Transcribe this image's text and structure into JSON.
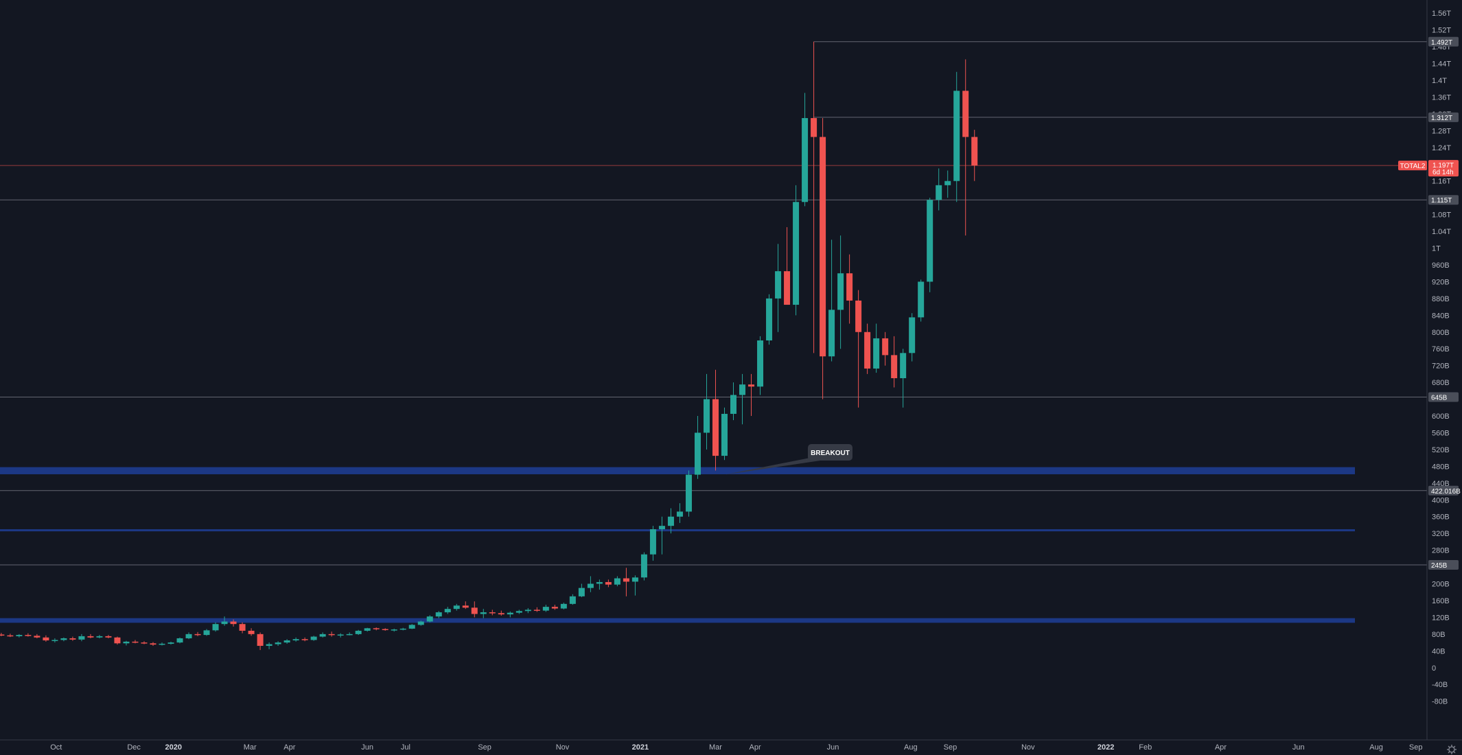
{
  "chart_data": {
    "type": "candlestick",
    "symbol": "TOTAL2",
    "interval": "weekly",
    "y_axis": {
      "ticks": [
        "1.56T",
        "1.52T",
        "1.48T",
        "1.44T",
        "1.4T",
        "1.36T",
        "1.32T",
        "1.28T",
        "1.24T",
        "1.2T",
        "1.16T",
        "1.12T",
        "1.08T",
        "1.04T",
        "1T",
        "960B",
        "920B",
        "880B",
        "840B",
        "800B",
        "760B",
        "720B",
        "680B",
        "640B",
        "600B",
        "560B",
        "520B",
        "480B",
        "440B",
        "400B",
        "360B",
        "320B",
        "280B",
        "240B",
        "200B",
        "160B",
        "120B",
        "80B",
        "40B",
        "0",
        "-40B",
        "-80B"
      ],
      "range": [
        -110000000000,
        1580000000000
      ]
    },
    "x_axis": {
      "labels": [
        {
          "text": "Oct",
          "date": "2019-10-01",
          "bold": false
        },
        {
          "text": "Dec",
          "date": "2019-12-01",
          "bold": false
        },
        {
          "text": "2020",
          "date": "2020-01-01",
          "bold": true
        },
        {
          "text": "Mar",
          "date": "2020-03-01",
          "bold": false
        },
        {
          "text": "Apr",
          "date": "2020-04-01",
          "bold": false
        },
        {
          "text": "Jun",
          "date": "2020-06-01",
          "bold": false
        },
        {
          "text": "Jul",
          "date": "2020-07-01",
          "bold": false
        },
        {
          "text": "Sep",
          "date": "2020-09-01",
          "bold": false
        },
        {
          "text": "Nov",
          "date": "2020-11-01",
          "bold": false
        },
        {
          "text": "2021",
          "date": "2021-01-01",
          "bold": true
        },
        {
          "text": "Mar",
          "date": "2021-03-01",
          "bold": false
        },
        {
          "text": "Apr",
          "date": "2021-04-01",
          "bold": false
        },
        {
          "text": "Jun",
          "date": "2021-06-01",
          "bold": false
        },
        {
          "text": "Aug",
          "date": "2021-08-01",
          "bold": false
        },
        {
          "text": "Sep",
          "date": "2021-09-01",
          "bold": false
        },
        {
          "text": "Nov",
          "date": "2021-11-01",
          "bold": false
        },
        {
          "text": "2022",
          "date": "2022-01-01",
          "bold": true
        },
        {
          "text": "Feb",
          "date": "2022-02-01",
          "bold": false
        },
        {
          "text": "Apr",
          "date": "2022-04-01",
          "bold": false
        },
        {
          "text": "Jun",
          "date": "2022-06-01",
          "bold": false
        },
        {
          "text": "Aug",
          "date": "2022-08-01",
          "bold": false
        },
        {
          "text": "Sep",
          "date": "2022-09-01",
          "bold": false
        }
      ],
      "range": [
        "2019-08-18",
        "2022-09-20"
      ]
    },
    "candles": [
      {
        "date": "2019-08-19",
        "open": 79,
        "high": 83,
        "low": 75,
        "close": 77
      },
      {
        "date": "2019-08-26",
        "open": 77,
        "high": 81,
        "low": 73,
        "close": 75
      },
      {
        "date": "2019-09-02",
        "open": 75,
        "high": 80,
        "low": 72,
        "close": 78
      },
      {
        "date": "2019-09-09",
        "open": 78,
        "high": 82,
        "low": 74,
        "close": 76
      },
      {
        "date": "2019-09-16",
        "open": 76,
        "high": 80,
        "low": 70,
        "close": 72
      },
      {
        "date": "2019-09-23",
        "open": 72,
        "high": 77,
        "low": 62,
        "close": 65
      },
      {
        "date": "2019-09-30",
        "open": 65,
        "high": 70,
        "low": 60,
        "close": 66
      },
      {
        "date": "2019-10-07",
        "open": 66,
        "high": 72,
        "low": 63,
        "close": 70
      },
      {
        "date": "2019-10-14",
        "open": 70,
        "high": 74,
        "low": 64,
        "close": 67
      },
      {
        "date": "2019-10-21",
        "open": 67,
        "high": 80,
        "low": 63,
        "close": 75
      },
      {
        "date": "2019-10-28",
        "open": 75,
        "high": 80,
        "low": 70,
        "close": 72
      },
      {
        "date": "2019-11-04",
        "open": 72,
        "high": 78,
        "low": 70,
        "close": 75
      },
      {
        "date": "2019-11-11",
        "open": 75,
        "high": 78,
        "low": 70,
        "close": 72
      },
      {
        "date": "2019-11-18",
        "open": 72,
        "high": 74,
        "low": 55,
        "close": 58
      },
      {
        "date": "2019-11-25",
        "open": 58,
        "high": 64,
        "low": 53,
        "close": 62
      },
      {
        "date": "2019-12-02",
        "open": 62,
        "high": 66,
        "low": 58,
        "close": 60
      },
      {
        "date": "2019-12-09",
        "open": 60,
        "high": 63,
        "low": 56,
        "close": 58
      },
      {
        "date": "2019-12-16",
        "open": 58,
        "high": 61,
        "low": 52,
        "close": 55
      },
      {
        "date": "2019-12-23",
        "open": 55,
        "high": 60,
        "low": 53,
        "close": 57
      },
      {
        "date": "2019-12-30",
        "open": 57,
        "high": 62,
        "low": 55,
        "close": 60
      },
      {
        "date": "2020-01-06",
        "open": 60,
        "high": 72,
        "low": 58,
        "close": 70
      },
      {
        "date": "2020-01-13",
        "open": 70,
        "high": 84,
        "low": 68,
        "close": 80
      },
      {
        "date": "2020-01-20",
        "open": 80,
        "high": 85,
        "low": 75,
        "close": 78
      },
      {
        "date": "2020-01-27",
        "open": 78,
        "high": 92,
        "low": 76,
        "close": 89
      },
      {
        "date": "2020-02-03",
        "open": 89,
        "high": 108,
        "low": 86,
        "close": 104
      },
      {
        "date": "2020-02-10",
        "open": 104,
        "high": 122,
        "low": 100,
        "close": 110
      },
      {
        "date": "2020-02-17",
        "open": 110,
        "high": 115,
        "low": 98,
        "close": 104
      },
      {
        "date": "2020-02-24",
        "open": 104,
        "high": 108,
        "low": 82,
        "close": 88
      },
      {
        "date": "2020-03-02",
        "open": 88,
        "high": 94,
        "low": 76,
        "close": 80
      },
      {
        "date": "2020-03-09",
        "open": 80,
        "high": 84,
        "low": 42,
        "close": 52
      },
      {
        "date": "2020-03-16",
        "open": 52,
        "high": 60,
        "low": 44,
        "close": 56
      },
      {
        "date": "2020-03-23",
        "open": 56,
        "high": 63,
        "low": 52,
        "close": 60
      },
      {
        "date": "2020-03-30",
        "open": 60,
        "high": 68,
        "low": 57,
        "close": 65
      },
      {
        "date": "2020-04-06",
        "open": 65,
        "high": 72,
        "low": 62,
        "close": 68
      },
      {
        "date": "2020-04-13",
        "open": 68,
        "high": 72,
        "low": 63,
        "close": 66
      },
      {
        "date": "2020-04-20",
        "open": 66,
        "high": 76,
        "low": 64,
        "close": 74
      },
      {
        "date": "2020-04-27",
        "open": 74,
        "high": 84,
        "low": 72,
        "close": 80
      },
      {
        "date": "2020-05-04",
        "open": 80,
        "high": 86,
        "low": 74,
        "close": 78
      },
      {
        "date": "2020-05-11",
        "open": 78,
        "high": 82,
        "low": 72,
        "close": 79
      },
      {
        "date": "2020-05-18",
        "open": 79,
        "high": 84,
        "low": 77,
        "close": 80
      },
      {
        "date": "2020-05-25",
        "open": 80,
        "high": 90,
        "low": 78,
        "close": 88
      },
      {
        "date": "2020-06-01",
        "open": 88,
        "high": 95,
        "low": 86,
        "close": 94
      },
      {
        "date": "2020-06-08",
        "open": 94,
        "high": 96,
        "low": 89,
        "close": 92
      },
      {
        "date": "2020-06-15",
        "open": 92,
        "high": 94,
        "low": 88,
        "close": 90
      },
      {
        "date": "2020-06-22",
        "open": 90,
        "high": 93,
        "low": 86,
        "close": 91
      },
      {
        "date": "2020-06-29",
        "open": 91,
        "high": 95,
        "low": 89,
        "close": 93
      },
      {
        "date": "2020-07-06",
        "open": 93,
        "high": 104,
        "low": 92,
        "close": 102
      },
      {
        "date": "2020-07-13",
        "open": 102,
        "high": 112,
        "low": 100,
        "close": 110
      },
      {
        "date": "2020-07-20",
        "open": 110,
        "high": 125,
        "low": 108,
        "close": 122
      },
      {
        "date": "2020-07-27",
        "open": 122,
        "high": 135,
        "low": 118,
        "close": 132
      },
      {
        "date": "2020-08-03",
        "open": 132,
        "high": 145,
        "low": 128,
        "close": 140
      },
      {
        "date": "2020-08-10",
        "open": 140,
        "high": 152,
        "low": 136,
        "close": 148
      },
      {
        "date": "2020-08-17",
        "open": 148,
        "high": 158,
        "low": 140,
        "close": 143
      },
      {
        "date": "2020-08-24",
        "open": 143,
        "high": 158,
        "low": 120,
        "close": 128
      },
      {
        "date": "2020-08-31",
        "open": 128,
        "high": 140,
        "low": 118,
        "close": 132
      },
      {
        "date": "2020-09-07",
        "open": 132,
        "high": 138,
        "low": 125,
        "close": 130
      },
      {
        "date": "2020-09-14",
        "open": 130,
        "high": 136,
        "low": 124,
        "close": 127
      },
      {
        "date": "2020-09-21",
        "open": 127,
        "high": 134,
        "low": 120,
        "close": 131
      },
      {
        "date": "2020-09-28",
        "open": 131,
        "high": 138,
        "low": 128,
        "close": 135
      },
      {
        "date": "2020-10-05",
        "open": 135,
        "high": 142,
        "low": 130,
        "close": 138
      },
      {
        "date": "2020-10-12",
        "open": 138,
        "high": 144,
        "low": 133,
        "close": 136
      },
      {
        "date": "2020-10-19",
        "open": 136,
        "high": 150,
        "low": 133,
        "close": 145
      },
      {
        "date": "2020-10-26",
        "open": 145,
        "high": 150,
        "low": 138,
        "close": 141
      },
      {
        "date": "2020-11-02",
        "open": 141,
        "high": 155,
        "low": 139,
        "close": 152
      },
      {
        "date": "2020-11-09",
        "open": 152,
        "high": 175,
        "low": 150,
        "close": 170
      },
      {
        "date": "2020-11-16",
        "open": 170,
        "high": 200,
        "low": 168,
        "close": 190
      },
      {
        "date": "2020-11-23",
        "open": 190,
        "high": 218,
        "low": 180,
        "close": 200
      },
      {
        "date": "2020-11-30",
        "open": 200,
        "high": 210,
        "low": 186,
        "close": 204
      },
      {
        "date": "2020-12-07",
        "open": 204,
        "high": 210,
        "low": 192,
        "close": 198
      },
      {
        "date": "2020-12-14",
        "open": 198,
        "high": 218,
        "low": 194,
        "close": 213
      },
      {
        "date": "2020-12-21",
        "open": 213,
        "high": 238,
        "low": 170,
        "close": 205
      },
      {
        "date": "2020-12-28",
        "open": 205,
        "high": 220,
        "low": 172,
        "close": 215
      },
      {
        "date": "2021-01-04",
        "open": 215,
        "high": 275,
        "low": 208,
        "close": 270
      },
      {
        "date": "2021-01-11",
        "open": 270,
        "high": 338,
        "low": 255,
        "close": 330
      },
      {
        "date": "2021-01-18",
        "open": 330,
        "high": 360,
        "low": 270,
        "close": 338
      },
      {
        "date": "2021-01-25",
        "open": 338,
        "high": 380,
        "low": 320,
        "close": 360
      },
      {
        "date": "2021-02-01",
        "open": 360,
        "high": 392,
        "low": 345,
        "close": 372
      },
      {
        "date": "2021-02-08",
        "open": 372,
        "high": 470,
        "low": 360,
        "close": 460
      },
      {
        "date": "2021-02-15",
        "open": 460,
        "high": 600,
        "low": 450,
        "close": 560
      },
      {
        "date": "2021-02-22",
        "open": 560,
        "high": 700,
        "low": 520,
        "close": 640
      },
      {
        "date": "2021-03-01",
        "open": 640,
        "high": 710,
        "low": 470,
        "close": 505
      },
      {
        "date": "2021-03-08",
        "open": 505,
        "high": 620,
        "low": 495,
        "close": 605
      },
      {
        "date": "2021-03-15",
        "open": 605,
        "high": 680,
        "low": 590,
        "close": 650
      },
      {
        "date": "2021-03-22",
        "open": 650,
        "high": 700,
        "low": 580,
        "close": 675
      },
      {
        "date": "2021-03-29",
        "open": 675,
        "high": 700,
        "low": 600,
        "close": 670
      },
      {
        "date": "2021-04-05",
        "open": 670,
        "high": 790,
        "low": 650,
        "close": 780
      },
      {
        "date": "2021-04-12",
        "open": 780,
        "high": 890,
        "low": 770,
        "close": 880
      },
      {
        "date": "2021-04-19",
        "open": 880,
        "high": 1010,
        "low": 800,
        "close": 945
      },
      {
        "date": "2021-04-26",
        "open": 945,
        "high": 1050,
        "low": 900,
        "close": 865
      },
      {
        "date": "2021-05-03",
        "open": 865,
        "high": 1150,
        "low": 840,
        "close": 1110
      },
      {
        "date": "2021-05-10",
        "open": 1110,
        "high": 1370,
        "low": 1100,
        "close": 1310
      },
      {
        "date": "2021-05-17",
        "open": 1310,
        "high": 1492,
        "low": 750,
        "close": 1265
      },
      {
        "date": "2021-05-24",
        "open": 1265,
        "high": 1310,
        "low": 640,
        "close": 742
      },
      {
        "date": "2021-05-31",
        "open": 742,
        "high": 1020,
        "low": 730,
        "close": 853
      },
      {
        "date": "2021-06-07",
        "open": 853,
        "high": 1030,
        "low": 760,
        "close": 940
      },
      {
        "date": "2021-06-14",
        "open": 940,
        "high": 985,
        "low": 820,
        "close": 875
      },
      {
        "date": "2021-06-21",
        "open": 875,
        "high": 900,
        "low": 620,
        "close": 800
      },
      {
        "date": "2021-06-28",
        "open": 800,
        "high": 820,
        "low": 700,
        "close": 713
      },
      {
        "date": "2021-07-05",
        "open": 713,
        "high": 820,
        "low": 703,
        "close": 785
      },
      {
        "date": "2021-07-12",
        "open": 785,
        "high": 800,
        "low": 720,
        "close": 745
      },
      {
        "date": "2021-07-19",
        "open": 745,
        "high": 790,
        "low": 668,
        "close": 690
      },
      {
        "date": "2021-07-26",
        "open": 690,
        "high": 760,
        "low": 620,
        "close": 750
      },
      {
        "date": "2021-08-02",
        "open": 750,
        "high": 845,
        "low": 730,
        "close": 835
      },
      {
        "date": "2021-08-09",
        "open": 835,
        "high": 925,
        "low": 825,
        "close": 920
      },
      {
        "date": "2021-08-16",
        "open": 920,
        "high": 1120,
        "low": 895,
        "close": 1115
      },
      {
        "date": "2021-08-23",
        "open": 1115,
        "high": 1190,
        "low": 1090,
        "close": 1150
      },
      {
        "date": "2021-08-30",
        "open": 1150,
        "high": 1185,
        "low": 1120,
        "close": 1160
      },
      {
        "date": "2021-09-06",
        "open": 1160,
        "high": 1420,
        "low": 1110,
        "close": 1375
      },
      {
        "date": "2021-09-13",
        "open": 1375,
        "high": 1450,
        "low": 1030,
        "close": 1265
      },
      {
        "date": "2021-09-20",
        "open": 1265,
        "high": 1282,
        "low": 1160,
        "close": 1197
      }
    ],
    "candle_values_unit": "billions USD",
    "colors": {
      "up": "#26a69a",
      "down": "#ef5350",
      "background": "#131722",
      "zone": "#2962ff",
      "axis_text": "#b2b5be"
    },
    "price_lines": [
      {
        "label": "1.492T",
        "value": 1492000000000
      },
      {
        "label": "1.312T",
        "value": 1312000000000
      },
      {
        "label": "1.115T",
        "value": 1115000000000
      },
      {
        "label": "645B",
        "value": 645000000000
      },
      {
        "label": "422.016B",
        "value": 422016000000
      },
      {
        "label": "245B",
        "value": 245000000000
      }
    ],
    "last_price": {
      "symbol": "TOTAL2",
      "label": "1.197T",
      "countdown": "6d 14h",
      "value": 1197000000000
    },
    "zones": [
      {
        "from": 461000000000,
        "to": 478000000000
      },
      {
        "from": 325000000000,
        "to": 330000000000
      },
      {
        "from": 107000000000,
        "to": 118000000000
      }
    ],
    "annotation": {
      "text": "BREAKOUT",
      "anchor_date": "2021-03-01",
      "anchor_value": 470000000000
    },
    "grid": false,
    "legend": "none"
  }
}
